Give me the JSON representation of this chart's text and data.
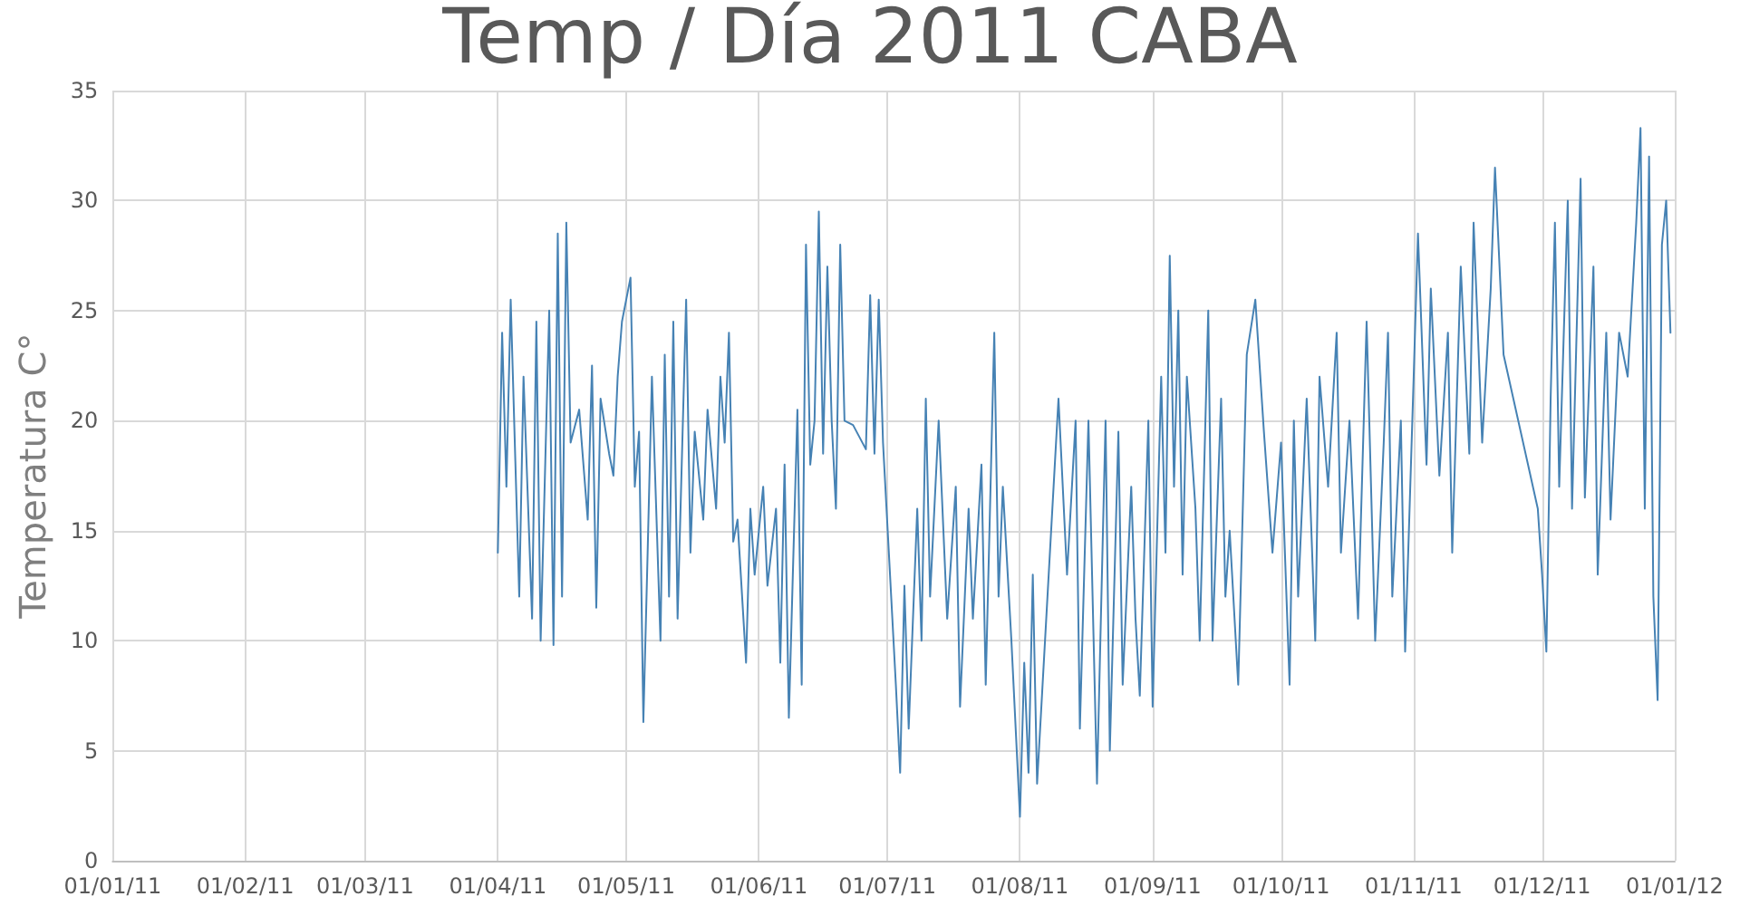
{
  "chart_data": {
    "type": "line",
    "title": "Temp / Día 2011 CABA",
    "ylabel": "Temperatura C°",
    "xlim": [
      "2011-01-01",
      "2012-01-01"
    ],
    "xticks": [
      {
        "value": "2011-01-01",
        "label": "01/01/11"
      },
      {
        "value": "2011-02-01",
        "label": "01/02/11"
      },
      {
        "value": "2011-03-01",
        "label": "01/03/11"
      },
      {
        "value": "2011-04-01",
        "label": "01/04/11"
      },
      {
        "value": "2011-05-01",
        "label": "01/05/11"
      },
      {
        "value": "2011-06-01",
        "label": "01/06/11"
      },
      {
        "value": "2011-07-01",
        "label": "01/07/11"
      },
      {
        "value": "2011-08-01",
        "label": "01/08/11"
      },
      {
        "value": "2011-09-01",
        "label": "01/09/11"
      },
      {
        "value": "2011-10-01",
        "label": "01/10/11"
      },
      {
        "value": "2011-11-01",
        "label": "01/11/11"
      },
      {
        "value": "2011-12-01",
        "label": "01/12/11"
      },
      {
        "value": "2012-01-01",
        "label": "01/01/12"
      }
    ],
    "ylim": [
      0,
      35
    ],
    "yticks": [
      0,
      5,
      10,
      15,
      20,
      25,
      30,
      35
    ],
    "grid": true,
    "marker": "none",
    "line_style": "solid",
    "x": [
      "2011-04-01",
      "2011-04-02",
      "2011-04-03",
      "2011-04-04",
      "2011-04-06",
      "2011-04-07",
      "2011-04-09",
      "2011-04-10",
      "2011-04-11",
      "2011-04-13",
      "2011-04-14",
      "2011-04-15",
      "2011-04-16",
      "2011-04-17",
      "2011-04-18",
      "2011-04-20",
      "2011-04-22",
      "2011-04-23",
      "2011-04-24",
      "2011-04-25",
      "2011-04-27",
      "2011-04-28",
      "2011-04-29",
      "2011-04-30",
      "2011-05-02",
      "2011-05-03",
      "2011-05-04",
      "2011-05-05",
      "2011-05-06",
      "2011-05-07",
      "2011-05-09",
      "2011-05-10",
      "2011-05-11",
      "2011-05-12",
      "2011-05-13",
      "2011-05-15",
      "2011-05-16",
      "2011-05-17",
      "2011-05-19",
      "2011-05-20",
      "2011-05-22",
      "2011-05-23",
      "2011-05-24",
      "2011-05-25",
      "2011-05-26",
      "2011-05-27",
      "2011-05-29",
      "2011-05-30",
      "2011-05-31",
      "2011-06-02",
      "2011-06-03",
      "2011-06-05",
      "2011-06-06",
      "2011-06-07",
      "2011-06-08",
      "2011-06-10",
      "2011-06-11",
      "2011-06-12",
      "2011-06-13",
      "2011-06-14",
      "2011-06-15",
      "2011-06-16",
      "2011-06-17",
      "2011-06-18",
      "2011-06-19",
      "2011-06-20",
      "2011-06-21",
      "2011-06-23",
      "2011-06-26",
      "2011-06-27",
      "2011-06-28",
      "2011-06-29",
      "2011-06-30",
      "2011-07-03",
      "2011-07-04",
      "2011-07-05",
      "2011-07-06",
      "2011-07-08",
      "2011-07-09",
      "2011-07-10",
      "2011-07-11",
      "2011-07-13",
      "2011-07-15",
      "2011-07-17",
      "2011-07-18",
      "2011-07-20",
      "2011-07-21",
      "2011-07-23",
      "2011-07-24",
      "2011-07-26",
      "2011-07-27",
      "2011-07-28",
      "2011-07-30",
      "2011-08-01",
      "2011-08-02",
      "2011-08-03",
      "2011-08-04",
      "2011-08-05",
      "2011-08-10",
      "2011-08-12",
      "2011-08-14",
      "2011-08-15",
      "2011-08-17",
      "2011-08-19",
      "2011-08-21",
      "2011-08-22",
      "2011-08-24",
      "2011-08-25",
      "2011-08-27",
      "2011-08-28",
      "2011-08-29",
      "2011-08-31",
      "2011-09-01",
      "2011-09-03",
      "2011-09-04",
      "2011-09-05",
      "2011-09-06",
      "2011-09-07",
      "2011-09-08",
      "2011-09-09",
      "2011-09-11",
      "2011-09-12",
      "2011-09-14",
      "2011-09-15",
      "2011-09-17",
      "2011-09-18",
      "2011-09-19",
      "2011-09-21",
      "2011-09-23",
      "2011-09-25",
      "2011-09-27",
      "2011-09-29",
      "2011-10-01",
      "2011-10-03",
      "2011-10-04",
      "2011-10-05",
      "2011-10-07",
      "2011-10-09",
      "2011-10-10",
      "2011-10-12",
      "2011-10-14",
      "2011-10-15",
      "2011-10-17",
      "2011-10-19",
      "2011-10-21",
      "2011-10-23",
      "2011-10-25",
      "2011-10-26",
      "2011-10-27",
      "2011-10-29",
      "2011-10-30",
      "2011-11-01",
      "2011-11-02",
      "2011-11-04",
      "2011-11-05",
      "2011-11-07",
      "2011-11-09",
      "2011-11-10",
      "2011-11-12",
      "2011-11-14",
      "2011-11-15",
      "2011-11-17",
      "2011-11-19",
      "2011-11-20",
      "2011-11-22",
      "2011-11-30",
      "2011-12-01",
      "2011-12-02",
      "2011-12-03",
      "2011-12-04",
      "2011-12-05",
      "2011-12-07",
      "2011-12-08",
      "2011-12-10",
      "2011-12-11",
      "2011-12-13",
      "2011-12-14",
      "2011-12-16",
      "2011-12-17",
      "2011-12-19",
      "2011-12-21",
      "2011-12-23",
      "2011-12-24",
      "2011-12-25",
      "2011-12-26",
      "2011-12-27",
      "2011-12-28",
      "2011-12-29",
      "2011-12-30",
      "2011-12-31"
    ],
    "series": [
      {
        "color": "#4682b4",
        "values": [
          14,
          24,
          17,
          25.5,
          12,
          22,
          11,
          24.5,
          10,
          25,
          9.8,
          28.5,
          12,
          29,
          19,
          20.5,
          15.5,
          22.5,
          11.5,
          21,
          18.5,
          17.5,
          22,
          24.5,
          26.5,
          17,
          19.5,
          6.3,
          14,
          22,
          10,
          23,
          12,
          24.5,
          11,
          25.5,
          14,
          19.5,
          15.5,
          20.5,
          16,
          22,
          19,
          24,
          14.5,
          15.5,
          9,
          16,
          13,
          17,
          12.5,
          16,
          9,
          18,
          6.5,
          20.5,
          8,
          28,
          18,
          20,
          29.5,
          18.5,
          27,
          20,
          16,
          28,
          20,
          19.8,
          18.7,
          25.7,
          18.5,
          25.5,
          19,
          8,
          4,
          12.5,
          6,
          16,
          10,
          21,
          12,
          20,
          11,
          17,
          7,
          16,
          11,
          18,
          8,
          24,
          12,
          17,
          10,
          2,
          9,
          4,
          13,
          3.5,
          21,
          13,
          20,
          6,
          20,
          3.5,
          20,
          5,
          19.5,
          8,
          17,
          11,
          7.5,
          20,
          7,
          22,
          14,
          27.5,
          17,
          25,
          13,
          22,
          16,
          10,
          25,
          10,
          21,
          12,
          15,
          8,
          23,
          25.5,
          19.5,
          14,
          19,
          8,
          20,
          12,
          21,
          10,
          22,
          17,
          24,
          14,
          20,
          11,
          24.5,
          10,
          19,
          24,
          12,
          20,
          9.5,
          22,
          28.5,
          18,
          26,
          17.5,
          24,
          14,
          27,
          18.5,
          29,
          19,
          26,
          31.5,
          23,
          16,
          13,
          9.5,
          21,
          29,
          17,
          30,
          16,
          31,
          16.5,
          27,
          13,
          24,
          15.5,
          24,
          22,
          29,
          33.3,
          16,
          32,
          12,
          7.3,
          28,
          30,
          24
        ]
      }
    ]
  }
}
